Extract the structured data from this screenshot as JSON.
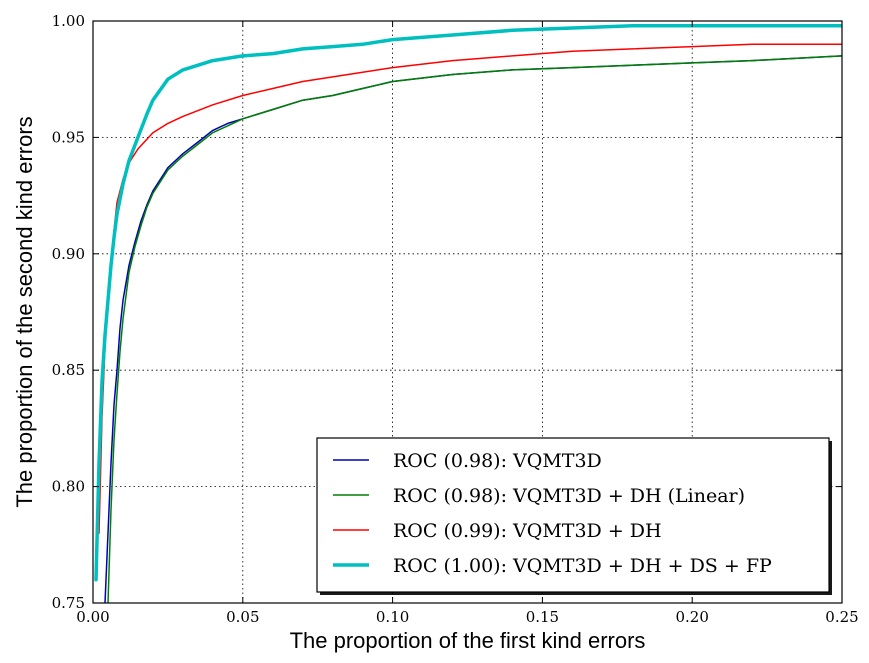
{
  "chart_data": {
    "type": "line",
    "title": "",
    "xlabel": "The proportion of the first kind errors",
    "ylabel": "The proportion of the second kind errors",
    "xlim": [
      0.0,
      0.25
    ],
    "ylim": [
      0.75,
      1.0
    ],
    "xticks": [
      "0.00",
      "0.05",
      "0.10",
      "0.15",
      "0.20",
      "0.25"
    ],
    "yticks": [
      "0.75",
      "0.80",
      "0.85",
      "0.90",
      "0.95",
      "1.00"
    ],
    "grid": true,
    "legend_position": "lower-right",
    "series": [
      {
        "name": "ROC (0.98): VQMT3D",
        "color": "#0000bf",
        "linewidth": 1.5,
        "x": [
          0.004,
          0.005,
          0.006,
          0.007,
          0.008,
          0.009,
          0.01,
          0.012,
          0.014,
          0.016,
          0.018,
          0.02,
          0.025,
          0.03,
          0.035,
          0.04,
          0.045,
          0.05,
          0.06,
          0.07,
          0.08,
          0.09,
          0.1,
          0.12,
          0.14,
          0.16,
          0.18,
          0.2,
          0.22,
          0.25
        ],
        "y": [
          0.75,
          0.78,
          0.81,
          0.835,
          0.85,
          0.868,
          0.88,
          0.895,
          0.905,
          0.914,
          0.921,
          0.927,
          0.937,
          0.943,
          0.948,
          0.953,
          0.956,
          0.958,
          0.962,
          0.966,
          0.968,
          0.971,
          0.974,
          0.977,
          0.979,
          0.98,
          0.981,
          0.982,
          0.983,
          0.985
        ]
      },
      {
        "name": "ROC (0.98): VQMT3D + DH (Linear)",
        "color": "#008000",
        "linewidth": 1.5,
        "x": [
          0.005,
          0.006,
          0.007,
          0.008,
          0.009,
          0.01,
          0.012,
          0.014,
          0.016,
          0.018,
          0.02,
          0.025,
          0.03,
          0.035,
          0.04,
          0.045,
          0.05,
          0.06,
          0.07,
          0.08,
          0.09,
          0.1,
          0.12,
          0.14,
          0.16,
          0.18,
          0.2,
          0.22,
          0.25
        ],
        "y": [
          0.75,
          0.79,
          0.82,
          0.84,
          0.858,
          0.872,
          0.892,
          0.903,
          0.912,
          0.92,
          0.926,
          0.936,
          0.942,
          0.947,
          0.952,
          0.955,
          0.958,
          0.962,
          0.966,
          0.968,
          0.971,
          0.974,
          0.977,
          0.979,
          0.98,
          0.981,
          0.982,
          0.983,
          0.985
        ]
      },
      {
        "name": "ROC (0.99): VQMT3D + DH",
        "color": "#ff0000",
        "linewidth": 1.5,
        "x": [
          0.002,
          0.003,
          0.004,
          0.005,
          0.006,
          0.007,
          0.008,
          0.01,
          0.012,
          0.015,
          0.02,
          0.025,
          0.03,
          0.04,
          0.05,
          0.06,
          0.07,
          0.08,
          0.09,
          0.1,
          0.12,
          0.14,
          0.16,
          0.18,
          0.2,
          0.22,
          0.25
        ],
        "y": [
          0.78,
          0.83,
          0.86,
          0.88,
          0.895,
          0.91,
          0.922,
          0.932,
          0.939,
          0.945,
          0.952,
          0.956,
          0.959,
          0.964,
          0.968,
          0.971,
          0.974,
          0.976,
          0.978,
          0.98,
          0.983,
          0.985,
          0.987,
          0.988,
          0.989,
          0.99,
          0.99
        ]
      },
      {
        "name": "ROC (1.00): VQMT3D + DH + DS + FP",
        "color": "#00bfbf",
        "linewidth": 3.5,
        "x": [
          0.001,
          0.002,
          0.003,
          0.004,
          0.005,
          0.006,
          0.007,
          0.008,
          0.01,
          0.012,
          0.015,
          0.018,
          0.02,
          0.025,
          0.03,
          0.04,
          0.05,
          0.06,
          0.07,
          0.08,
          0.09,
          0.1,
          0.12,
          0.14,
          0.16,
          0.18,
          0.2,
          0.22,
          0.25
        ],
        "y": [
          0.76,
          0.81,
          0.845,
          0.865,
          0.88,
          0.895,
          0.907,
          0.917,
          0.93,
          0.94,
          0.95,
          0.96,
          0.966,
          0.975,
          0.979,
          0.983,
          0.985,
          0.986,
          0.988,
          0.989,
          0.99,
          0.992,
          0.994,
          0.996,
          0.997,
          0.998,
          0.998,
          0.998,
          0.998
        ]
      }
    ]
  }
}
